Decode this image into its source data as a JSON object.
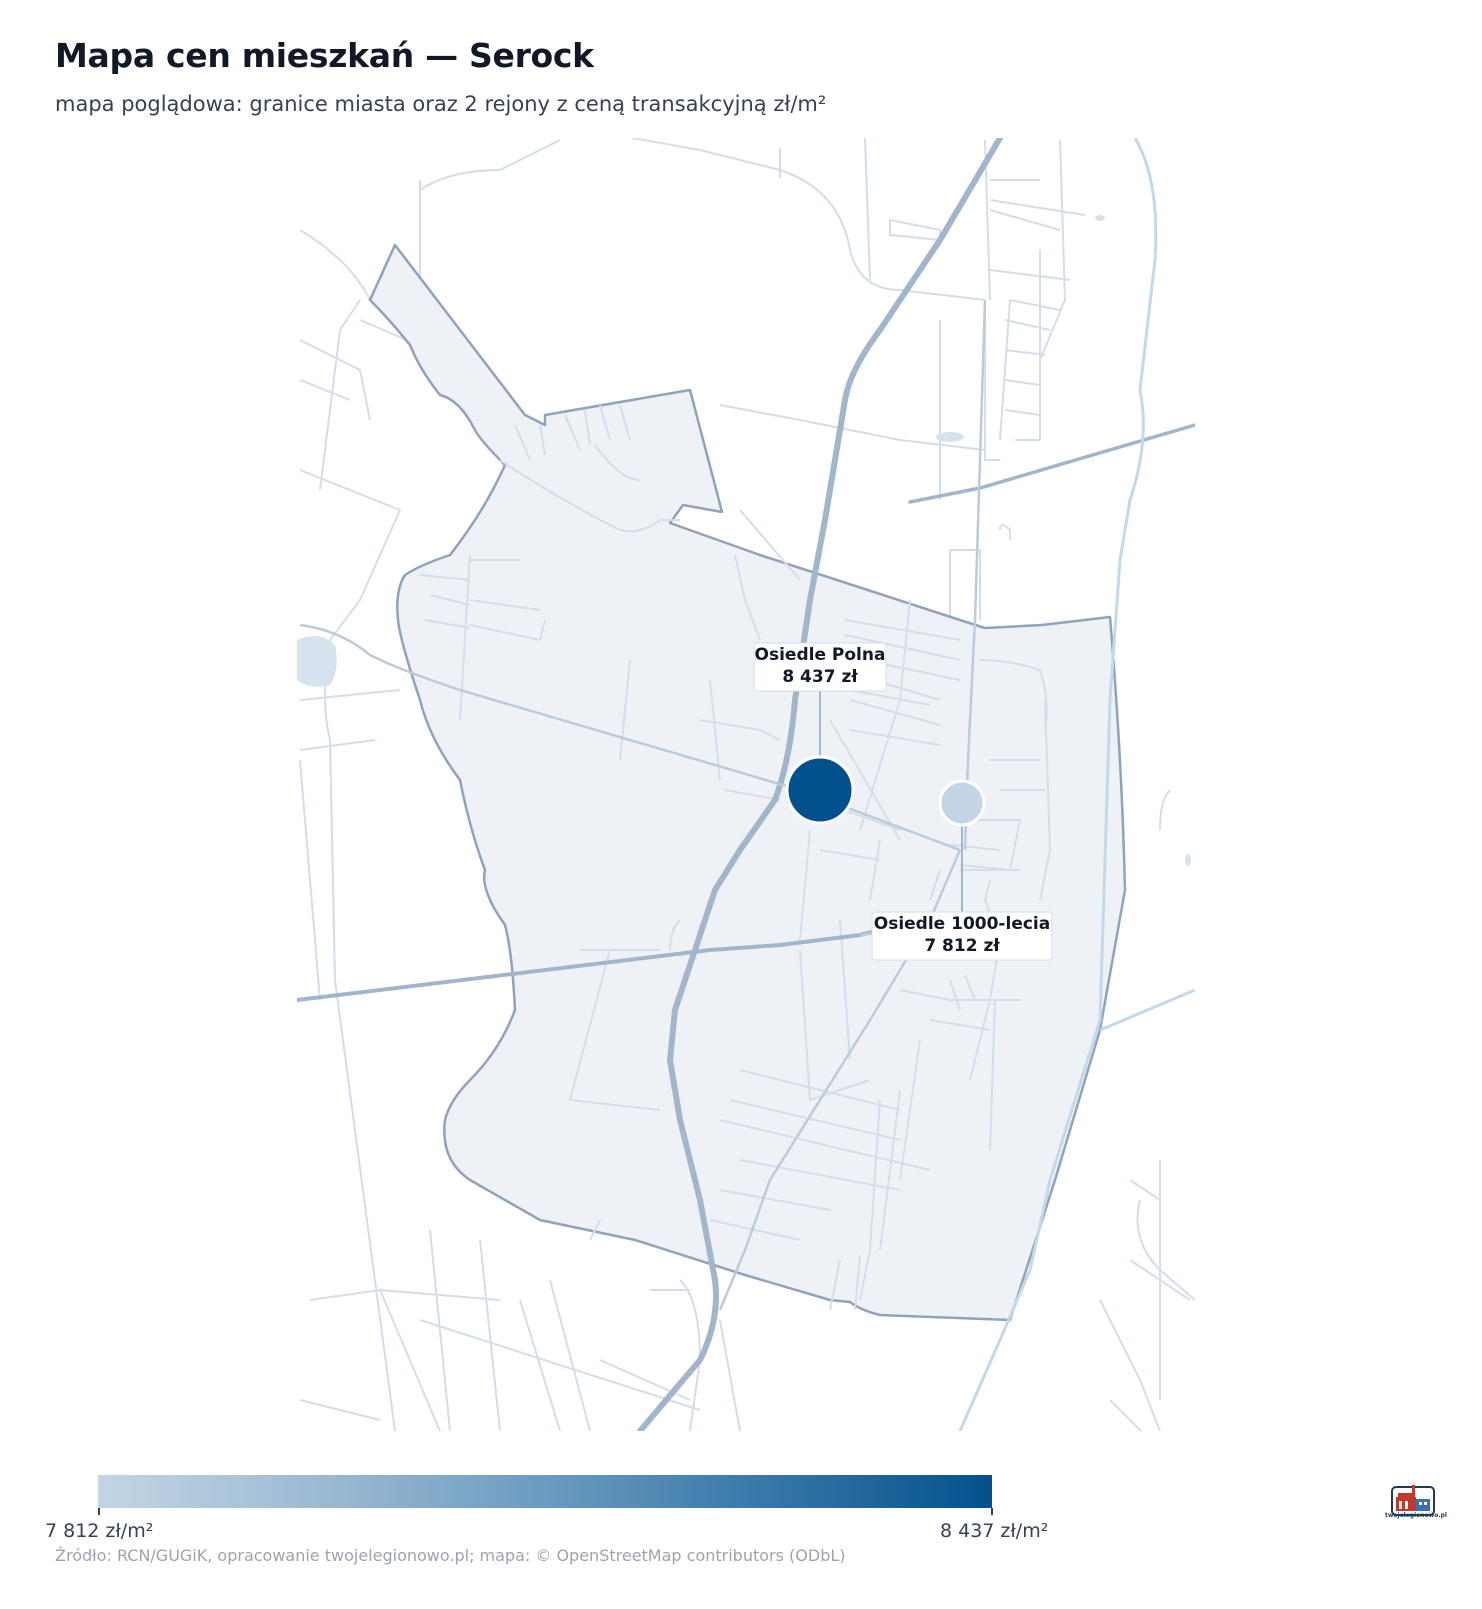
{
  "header": {
    "title": "Mapa cen mieszkań — Serock",
    "subtitle": "mapa poglądowa: granice miasta oraz 2 rejony z ceną transakcyjną zł/m²"
  },
  "map": {
    "basemap": "OpenStreetMap roads",
    "colors": {
      "boundary_fill": "#eef2f7",
      "boundary_stroke": "#8fa3bb",
      "major_road": "#9fb4c9",
      "minor_road": "#d4dde8",
      "water": "#bcd4e8"
    },
    "areas": [
      {
        "name": "Osiedle Polna",
        "price_label": "8 437 zł",
        "value": 8437,
        "color": "#03518c"
      },
      {
        "name": "Osiedle 1000-lecia",
        "price_label": "7 812 zł",
        "value": 7812,
        "color": "#c3d5e5"
      }
    ]
  },
  "legend": {
    "min_label": "7 812 zł/m²",
    "max_label": "8 437 zł/m²",
    "min_value": 7812,
    "max_value": 8437,
    "color_min": "#c3d5e5",
    "color_max": "#03518c"
  },
  "footer": {
    "source": "Źródło: RCN/GUGiK, opracowanie twojelegionowo.pl; mapa: © OpenStreetMap contributors (ODbL)",
    "logo_text": "twojelegionowo.pl"
  }
}
